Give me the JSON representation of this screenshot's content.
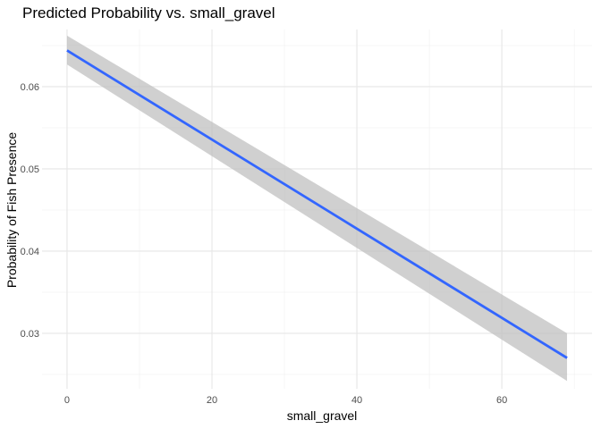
{
  "chart_data": {
    "type": "line",
    "title": "Predicted Probability vs. small_gravel",
    "xlabel": "small_gravel",
    "ylabel": "Probability of Fish Presence",
    "xlim": [
      -3.45,
      72.45
    ],
    "ylim": [
      0.02325,
      0.06695
    ],
    "x_ticks": [
      0,
      20,
      40,
      60
    ],
    "x_tick_labels": [
      "0",
      "20",
      "40",
      "60"
    ],
    "y_ticks": [
      0.03,
      0.04,
      0.05,
      0.06
    ],
    "y_tick_labels": [
      "0.03",
      "0.04",
      "0.05",
      "0.06"
    ],
    "grid": true,
    "legend": "none",
    "series": [
      {
        "x": [
          0,
          69
        ],
        "y": [
          0.0644,
          0.027
        ],
        "ci_upper": [
          0.0662,
          0.03
        ],
        "ci_lower": [
          0.0627,
          0.0242
        ],
        "color": "#3366FF",
        "ci_color": "#BEBEBE"
      }
    ]
  }
}
